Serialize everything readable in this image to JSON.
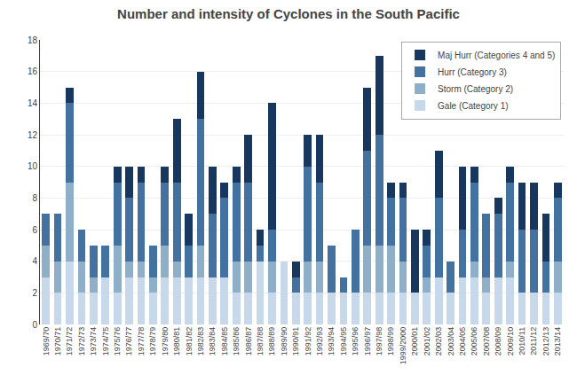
{
  "chart_data": {
    "type": "bar",
    "stacked": true,
    "title": "Number and intensity of Cyclones in the South Pacific",
    "categories": [
      "1969/70",
      "1970/71",
      "1971/72",
      "1972/73",
      "1973/74",
      "1974/75",
      "1975/76",
      "1976/77",
      "1977/78",
      "1978/79",
      "1979/80",
      "1980/81",
      "1981/82",
      "1982/83",
      "1983/84",
      "1984/85",
      "1985/86",
      "1986/87",
      "1987/88",
      "1988/89",
      "1989/90",
      "1990/91",
      "1991/92",
      "1992/93",
      "1993/94",
      "1994/95",
      "1995/96",
      "1996/97",
      "1997/98",
      "1998/99",
      "1999/2000",
      "2000/01",
      "2001/02",
      "2002/03",
      "2003/04",
      "2004/05",
      "2005/06",
      "2007/08",
      "2008/09",
      "2009/10",
      "2010/11",
      "2011/12",
      "2012/13",
      "2013/14"
    ],
    "series": [
      {
        "name": "Gale (Category 1)",
        "color": "#c8d8eb",
        "values": [
          3,
          2,
          4,
          2,
          2,
          3,
          2,
          3,
          3,
          2,
          3,
          3,
          3,
          3,
          3,
          3,
          2,
          2,
          4,
          2,
          4,
          2,
          2,
          2,
          2,
          2,
          2,
          2,
          2,
          2,
          2,
          2,
          2,
          3,
          2,
          3,
          3,
          2,
          3,
          3,
          2,
          2,
          2,
          2
        ]
      },
      {
        "name": "Storm (Category 2)",
        "color": "#8fafc8",
        "values": [
          2,
          2,
          5,
          2,
          1,
          0,
          3,
          1,
          1,
          1,
          2,
          1,
          0,
          2,
          0,
          0,
          2,
          2,
          0,
          2,
          0,
          0,
          2,
          2,
          0,
          0,
          0,
          3,
          3,
          3,
          2,
          0,
          1,
          0,
          0,
          0,
          1,
          1,
          0,
          1,
          0,
          0,
          0,
          2
        ]
      },
      {
        "name": "Hurr (Category 3)",
        "color": "#4472a0",
        "values": [
          2,
          3,
          5,
          2,
          2,
          2,
          4,
          4,
          5,
          2,
          4,
          5,
          2,
          8,
          4,
          5,
          5,
          5,
          1,
          2,
          0,
          1,
          6,
          5,
          3,
          1,
          4,
          6,
          7,
          3,
          4,
          0,
          2,
          5,
          2,
          3,
          5,
          4,
          4,
          5,
          4,
          4,
          2,
          4
        ]
      },
      {
        "name": "Maj Hurr (Categories 4 and 5)",
        "color": "#17375e",
        "values": [
          0,
          0,
          1,
          0,
          0,
          0,
          1,
          2,
          1,
          0,
          1,
          4,
          2,
          3,
          3,
          1,
          1,
          3,
          1,
          8,
          0,
          1,
          2,
          3,
          0,
          0,
          0,
          4,
          5,
          1,
          1,
          4,
          1,
          3,
          0,
          4,
          1,
          0,
          1,
          1,
          3,
          3,
          3,
          1
        ]
      }
    ],
    "ylim": [
      0,
      18
    ],
    "yticks": [
      0,
      2,
      4,
      6,
      8,
      10,
      12,
      14,
      16,
      18
    ],
    "grid": true,
    "legend": "upper right"
  }
}
